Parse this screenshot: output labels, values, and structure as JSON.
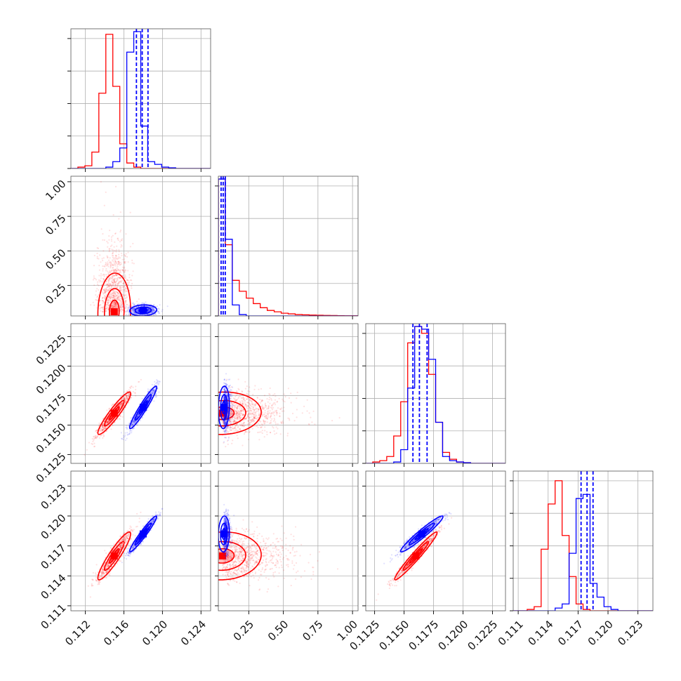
{
  "colors": {
    "red": "#ff0000",
    "blue": "#0000ff",
    "grid": "#b0b0b0"
  },
  "chart_data": {
    "type": "scatter",
    "subtype": "corner-plot",
    "grid": true,
    "parameters": [
      {
        "range": [
          0.1105,
          0.125
        ],
        "ticks": [
          0.112,
          0.116,
          0.12,
          0.124
        ],
        "tick_labels": [
          "0.112",
          "0.116",
          "0.120",
          "0.124"
        ]
      },
      {
        "range": [
          0.03,
          1.04
        ],
        "ticks": [
          0.25,
          0.5,
          0.75,
          1.0
        ],
        "tick_labels": [
          "0.25",
          "0.50",
          "0.75",
          "1.00"
        ]
      },
      {
        "range": [
          0.11175,
          0.1236
        ],
        "ticks": [
          0.1125,
          0.115,
          0.1175,
          0.12,
          0.1225
        ],
        "tick_labels": [
          "0.1125",
          "0.1150",
          "0.1175",
          "0.1200",
          "0.1225"
        ]
      },
      {
        "range": [
          0.1105,
          0.1245
        ],
        "ticks": [
          0.111,
          0.114,
          0.117,
          0.12,
          0.123
        ],
        "tick_labels": [
          "0.111",
          "0.114",
          "0.117",
          "0.120",
          "0.123"
        ]
      }
    ],
    "series": [
      {
        "color": "#ff0000",
        "mean": [
          0.115,
          0.06,
          0.116,
          0.116
        ],
        "std": [
          0.00085,
          0.14,
          0.0009,
          0.0012
        ],
        "corr": [
          [
            1,
            0.05,
            0.93,
            0.92
          ],
          [
            0.05,
            1,
            0.05,
            0.05
          ],
          [
            0.93,
            0.05,
            1,
            0.97
          ],
          [
            0.92,
            0.05,
            0.97,
            1
          ]
        ],
        "quantile_lines": []
      },
      {
        "color": "#0000ff",
        "mean": [
          0.118,
          0.07,
          0.1165,
          0.1182
        ],
        "std": [
          0.0007,
          0.02,
          0.0009,
          0.0009
        ],
        "corr": [
          [
            1,
            0.1,
            0.95,
            0.96
          ],
          [
            0.1,
            1,
            0.1,
            0.1
          ],
          [
            0.95,
            0.1,
            1,
            0.96
          ],
          [
            0.96,
            0.1,
            0.96,
            1
          ]
        ],
        "quantile_lines": [
          [
            0.1173,
            0.1179,
            0.1185
          ],
          [
            0.05,
            0.065,
            0.08
          ],
          [
            0.11575,
            0.1163,
            0.11695
          ],
          [
            0.1173,
            0.1179,
            0.1185
          ]
        ]
      }
    ],
    "histograms": [
      {
        "bins": [
          0.1105,
          0.125
        ],
        "red": [
          0,
          0.01,
          0.02,
          0.12,
          0.55,
          0.98,
          0.6,
          0.18,
          0.04,
          0.01,
          0,
          0,
          0,
          0,
          0,
          0,
          0,
          0,
          0,
          0
        ],
        "blue": [
          0,
          0,
          0,
          0,
          0,
          0.01,
          0.05,
          0.15,
          0.85,
          1.0,
          0.31,
          0.05,
          0.03,
          0.01,
          0.005,
          0,
          0,
          0,
          0,
          0
        ]
      },
      {
        "bins": [
          0.03,
          1.04
        ],
        "red": [
          1.0,
          0.52,
          0.26,
          0.18,
          0.13,
          0.09,
          0.06,
          0.04,
          0.03,
          0.02,
          0.015,
          0.01,
          0.008,
          0.006,
          0.005,
          0.004,
          0.003,
          0.002,
          0.001,
          0.001
        ],
        "blue": [
          1.0,
          0.56,
          0.08,
          0.01,
          0,
          0,
          0,
          0,
          0,
          0,
          0,
          0,
          0,
          0,
          0,
          0,
          0,
          0,
          0,
          0
        ]
      },
      {
        "bins": [
          0.11175,
          0.1236
        ],
        "red": [
          0,
          0.01,
          0.02,
          0.05,
          0.2,
          0.45,
          0.88,
          1.0,
          0.95,
          0.65,
          0.3,
          0.08,
          0.03,
          0.01,
          0.005,
          0,
          0,
          0,
          0,
          0
        ],
        "blue": [
          0,
          0,
          0,
          0,
          0.01,
          0.1,
          0.55,
          1.0,
          0.98,
          0.76,
          0.3,
          0.05,
          0.02,
          0.01,
          0.005,
          0,
          0,
          0,
          0,
          0
        ]
      },
      {
        "bins": [
          0.1105,
          0.1245
        ],
        "red": [
          0,
          0,
          0.01,
          0.03,
          0.45,
          0.78,
          0.95,
          0.55,
          0.25,
          0.05,
          0.01,
          0,
          0,
          0,
          0,
          0,
          0,
          0,
          0,
          0
        ],
        "blue": [
          0,
          0,
          0,
          0,
          0,
          0,
          0.02,
          0.05,
          0.42,
          0.82,
          0.85,
          0.2,
          0.1,
          0.03,
          0.01,
          0,
          0,
          0,
          0,
          0
        ]
      }
    ]
  }
}
